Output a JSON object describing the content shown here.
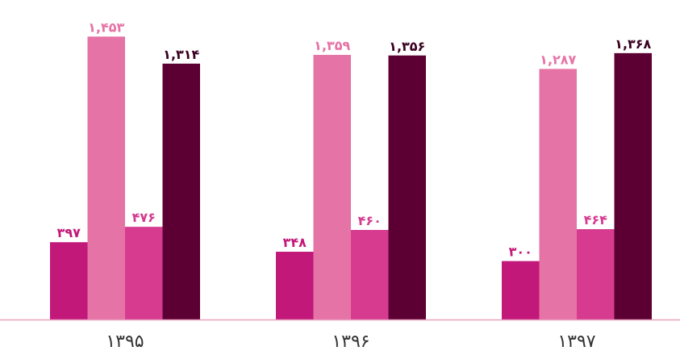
{
  "chart_data": {
    "type": "bar",
    "categories": [
      "۱۳۹۵",
      "۱۳۹۶",
      "۱۳۹۷"
    ],
    "series": [
      {
        "values": [
          397,
          348,
          300
        ],
        "labels": [
          "۳۹۷",
          "۳۴۸",
          "۳۰۰"
        ],
        "color": "#c2187a"
      },
      {
        "values": [
          1453,
          1359,
          1287
        ],
        "labels": [
          "۱,۴۵۳",
          "۱,۳۵۹",
          "۱,۲۸۷"
        ],
        "color": "#e673a6"
      },
      {
        "values": [
          476,
          460,
          464
        ],
        "labels": [
          "۴۷۶",
          "۴۶۰",
          "۴۶۴"
        ],
        "color": "#d63b8f"
      },
      {
        "values": [
          1314,
          1356,
          1368
        ],
        "labels": [
          "۱,۳۱۴",
          "۱,۳۵۶",
          "۱,۳۶۸"
        ],
        "color": "#5c0033"
      }
    ],
    "ylim": [
      0,
      1500
    ],
    "grid": false,
    "axis_color": "#e8a0c0"
  }
}
